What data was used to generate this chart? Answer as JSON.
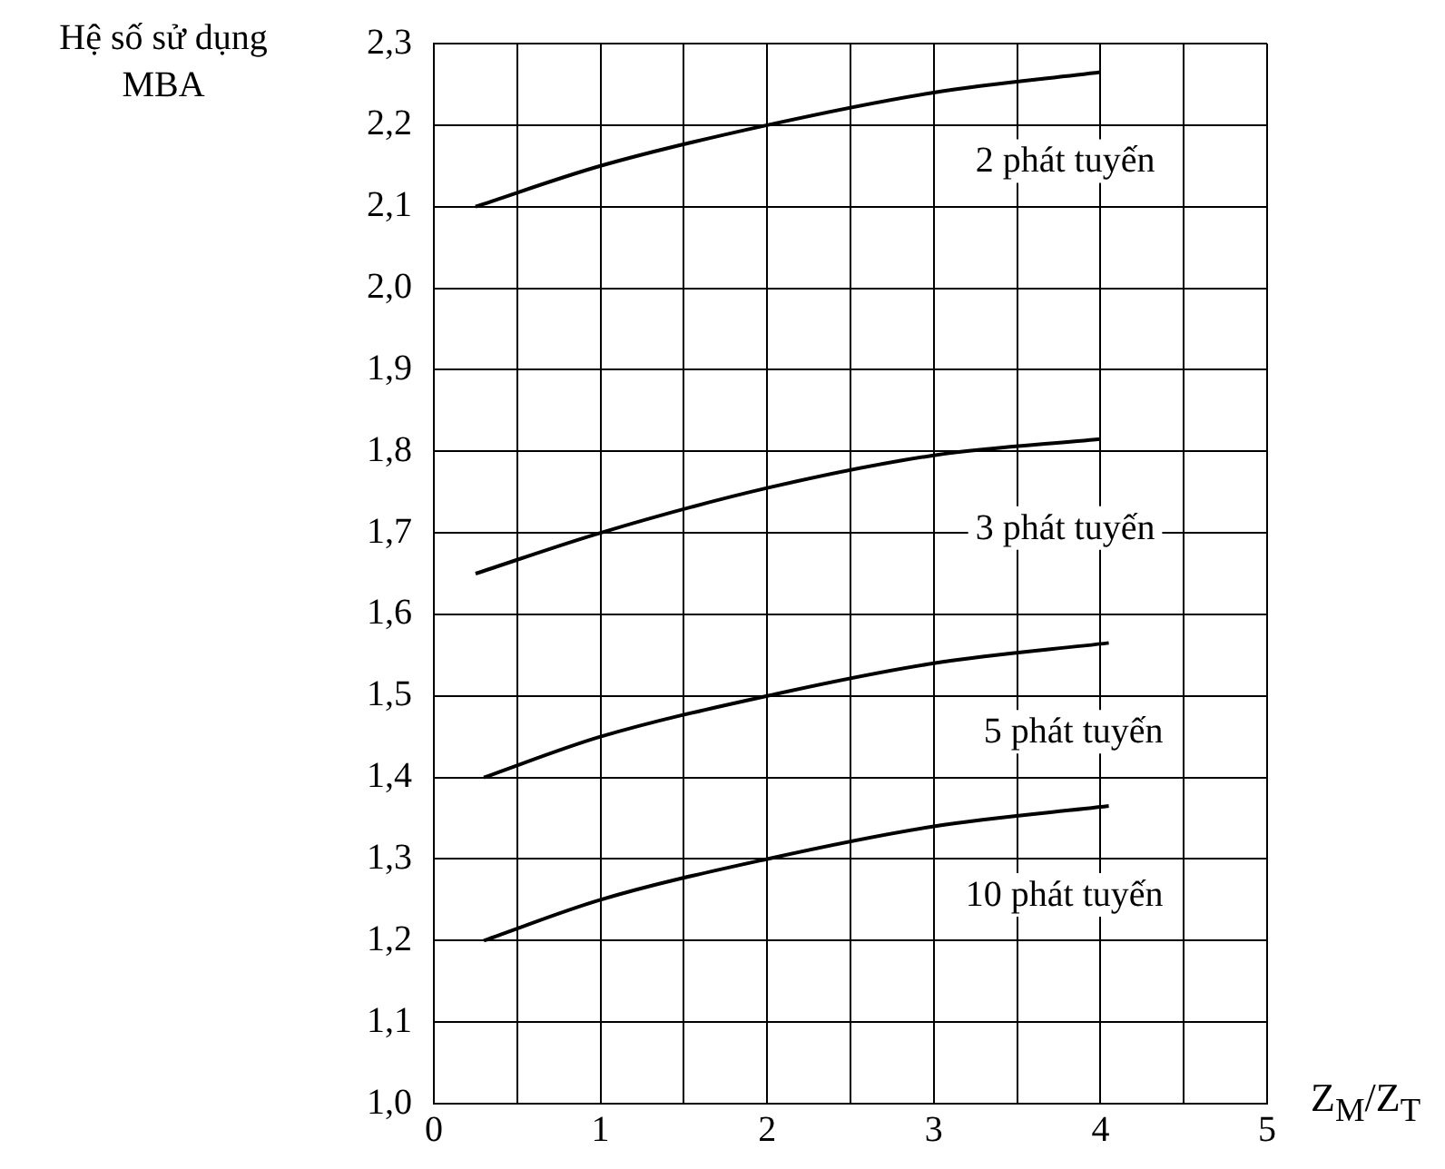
{
  "chart_data": {
    "type": "line",
    "ylabel": "Hệ số sử dụng MBA",
    "xlabel": "Z$_{M}$/Z$_{T}$",
    "xlim": [
      0,
      5
    ],
    "xticks": [
      0,
      {
        "value": 0.5,
        "label": null
      },
      1,
      {
        "value": 1.5,
        "label": null
      },
      2,
      {
        "value": 2.5,
        "label": null
      },
      3,
      {
        "value": 3.5,
        "label": null
      },
      4,
      {
        "value": 4.5,
        "label": null
      },
      5
    ],
    "ylim": [
      1.0,
      2.3
    ],
    "yticks": [
      {
        "value": 1.0,
        "label": "1,0"
      },
      {
        "value": 1.1,
        "label": "1,1"
      },
      {
        "value": 1.2,
        "label": "1,2"
      },
      {
        "value": 1.3,
        "label": "1,3"
      },
      {
        "value": 1.4,
        "label": "1,4"
      },
      {
        "value": 1.5,
        "label": "1,5"
      },
      {
        "value": 1.6,
        "label": "1,6"
      },
      {
        "value": 1.7,
        "label": "1,7"
      },
      {
        "value": 1.8,
        "label": "1,8"
      },
      {
        "value": 1.9,
        "label": "1,9"
      },
      {
        "value": 2.0,
        "label": "2,0"
      },
      {
        "value": 2.1,
        "label": "2,1"
      },
      {
        "value": 2.2,
        "label": "2,2"
      },
      {
        "value": 2.3,
        "label": "2,3"
      }
    ],
    "grid": true,
    "legend": false,
    "marker": "none",
    "line_style": "solid",
    "series": [
      {
        "name": "2 phát tuyến",
        "color": "#000000",
        "x": [
          0.25,
          1,
          2,
          3,
          4
        ],
        "values": [
          2.1,
          2.15,
          2.2,
          2.24,
          2.265
        ]
      },
      {
        "name": "3 phát tuyến",
        "color": "#000000",
        "x": [
          0.25,
          1,
          2,
          3,
          4
        ],
        "values": [
          1.65,
          1.7,
          1.755,
          1.795,
          1.815
        ]
      },
      {
        "name": "5 phát tuyến",
        "color": "#000000",
        "x": [
          0.3,
          1,
          2,
          3,
          4.05
        ],
        "values": [
          1.4,
          1.45,
          1.5,
          1.54,
          1.565
        ]
      },
      {
        "name": "10 phát tuyến",
        "color": "#000000",
        "x": [
          0.3,
          1,
          2,
          3,
          4.05
        ],
        "values": [
          1.2,
          1.25,
          1.3,
          1.34,
          1.365
        ]
      }
    ]
  }
}
